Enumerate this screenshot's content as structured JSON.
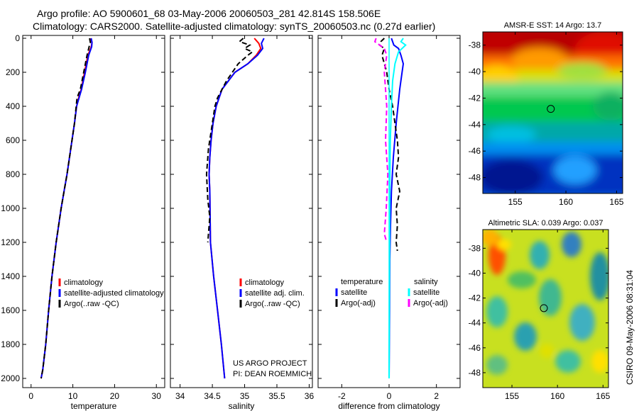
{
  "header": {
    "line1": "Argo profile: AO 5900601_68 03-May-2006 20060503_281 42.814S 158.506E",
    "line2": "Climatology: CARS2000. Satellite-adjusted climatology: synTS_20060503.nc (0.27d earlier)"
  },
  "colors": {
    "red": "#ff0000",
    "blue": "#0000ff",
    "black": "#000000",
    "cyan": "#00ffff",
    "magenta": "#ff00ff"
  },
  "chart_data": [
    {
      "id": "temperature",
      "type": "line",
      "xlabel": "temperature",
      "ylabel": "",
      "xlim": [
        -2,
        32
      ],
      "ylim": [
        2050,
        0
      ],
      "xticks": [
        0,
        10,
        20,
        30
      ],
      "yticks": [
        0,
        200,
        400,
        600,
        800,
        1000,
        1200,
        1400,
        1600,
        1800,
        2000
      ],
      "legend": [
        "climatology",
        "satellite-adjusted climatology",
        "Argo(..raw -QC)"
      ],
      "series": [
        {
          "name": "climatology",
          "color": "red",
          "dash": false,
          "x": [
            14.3,
            14.6,
            14.4,
            13.6,
            12.8,
            12.0,
            11.4,
            10.9,
            10.4,
            9.8,
            9.2,
            8.6,
            7.9,
            7.2,
            6.0,
            5.0,
            4.2,
            3.5,
            2.8,
            2.4
          ],
          "y": [
            0,
            25,
            50,
            100,
            200,
            300,
            350,
            400,
            500,
            600,
            700,
            800,
            900,
            1000,
            1200,
            1400,
            1600,
            1800,
            1950,
            2000
          ]
        },
        {
          "name": "satellite-adjusted climatology",
          "color": "blue",
          "dash": false,
          "x": [
            14.4,
            14.6,
            14.5,
            13.8,
            13.0,
            12.1,
            11.5,
            10.9,
            10.4,
            9.8,
            9.2,
            8.6,
            7.9,
            7.2,
            6.0,
            5.0,
            4.2,
            3.5,
            2.8,
            2.4
          ],
          "y": [
            0,
            25,
            50,
            100,
            200,
            300,
            350,
            400,
            500,
            600,
            700,
            800,
            900,
            1000,
            1200,
            1400,
            1600,
            1800,
            1950,
            2000
          ]
        },
        {
          "name": "Argo(..raw -QC)",
          "color": "black",
          "dash": true,
          "x": [
            14.0,
            14.2,
            13.9,
            13.4,
            12.6,
            11.8,
            11.0,
            10.8,
            10.4,
            9.8,
            9.2,
            8.6,
            7.9,
            7.2,
            6.0,
            5.0,
            4.2,
            3.5,
            2.8,
            2.4
          ],
          "y": [
            0,
            25,
            50,
            100,
            200,
            300,
            350,
            400,
            500,
            600,
            700,
            800,
            900,
            1000,
            1200,
            1400,
            1600,
            1800,
            1950,
            2000
          ]
        }
      ]
    },
    {
      "id": "salinity",
      "type": "line",
      "xlabel": "salinity",
      "ylabel": "",
      "xlim": [
        33.85,
        36.05
      ],
      "ylim": [
        2050,
        0
      ],
      "xticks": [
        34,
        34.5,
        35,
        35.5,
        36
      ],
      "yticks": [],
      "legend": [
        "climatology",
        "satellite adj. clim.",
        "Argo(..raw -QC)"
      ],
      "series": [
        {
          "name": "climatology",
          "color": "red",
          "dash": false,
          "x": [
            35.15,
            35.22,
            35.25,
            35.18,
            35.05,
            34.85,
            34.75,
            34.65,
            34.56,
            34.51,
            34.48,
            34.46,
            34.45,
            34.46,
            34.47,
            34.52,
            34.58,
            34.64,
            34.69
          ],
          "y": [
            0,
            30,
            60,
            100,
            150,
            200,
            250,
            300,
            400,
            500,
            600,
            700,
            800,
            900,
            1200,
            1400,
            1600,
            1800,
            2000
          ]
        },
        {
          "name": "satellite adj. clim.",
          "color": "blue",
          "dash": false,
          "x": [
            35.3,
            35.26,
            35.28,
            35.2,
            35.05,
            34.85,
            34.75,
            34.65,
            34.56,
            34.51,
            34.48,
            34.46,
            34.45,
            34.46,
            34.47,
            34.52,
            34.58,
            34.64,
            34.69
          ],
          "y": [
            0,
            30,
            60,
            100,
            150,
            200,
            250,
            300,
            400,
            500,
            600,
            700,
            800,
            900,
            1200,
            1400,
            1600,
            1800,
            2000
          ]
        },
        {
          "name": "Argo(..raw -QC)",
          "color": "black",
          "dash": true,
          "x": [
            34.98,
            34.92,
            35.08,
            35.0,
            35.12,
            35.05,
            34.9,
            34.72,
            34.58,
            34.54,
            34.5,
            34.44,
            34.41,
            34.43,
            34.46,
            34.44,
            34.43
          ],
          "y": [
            0,
            20,
            40,
            60,
            80,
            100,
            150,
            250,
            350,
            400,
            500,
            650,
            800,
            950,
            1050,
            1150,
            1200
          ]
        }
      ]
    },
    {
      "id": "difference",
      "type": "line",
      "xlabel": "difference from climatology",
      "ylabel": "",
      "xlim": [
        -3.0,
        3.0
      ],
      "ylim": [
        2050,
        0
      ],
      "xticks": [
        -2,
        0,
        2
      ],
      "yticks": [],
      "legend_title_left": "temperature",
      "legend_title_right": "salinity",
      "legend": [
        "satellite",
        "Argo(-adj)",
        "satellite",
        "Argo(-adj)"
      ],
      "series": [
        {
          "name": "satellite",
          "group": "temperature",
          "color": "blue",
          "dash": false,
          "x": [
            0.1,
            0.2,
            0.4,
            0.5,
            0.6,
            0.55,
            0.45,
            0.3,
            0.18,
            0.1,
            0.06,
            0.03,
            0.02,
            0.0
          ],
          "y": [
            0,
            40,
            60,
            100,
            150,
            200,
            300,
            500,
            700,
            900,
            1100,
            1300,
            1600,
            2000
          ]
        },
        {
          "name": "Argo(-adj)",
          "group": "temperature",
          "color": "black",
          "dash": true,
          "x": [
            -0.2,
            -0.35,
            -0.4,
            -0.2,
            -0.3,
            -0.1,
            0.0,
            0.15,
            0.25,
            0.35,
            0.4,
            0.3,
            0.45,
            0.3,
            0.35,
            0.3,
            0.35
          ],
          "y": [
            0,
            20,
            40,
            60,
            100,
            200,
            300,
            400,
            500,
            600,
            700,
            800,
            900,
            1000,
            1100,
            1200,
            1250
          ]
        },
        {
          "name": "satellite",
          "group": "salinity",
          "color": "cyan",
          "dash": false,
          "x": [
            0.6,
            0.5,
            0.7,
            0.4,
            0.25,
            0.15,
            0.1,
            0.05,
            0.03,
            0.02,
            0.01,
            0.0
          ],
          "y": [
            0,
            20,
            40,
            80,
            150,
            250,
            400,
            600,
            900,
            1200,
            1600,
            2000
          ]
        },
        {
          "name": "Argo(-adj)",
          "group": "salinity",
          "color": "magenta",
          "dash": true,
          "x": [
            -0.55,
            -0.6,
            -0.4,
            -0.2,
            -0.1,
            -0.2,
            -0.1,
            -0.15,
            -0.05,
            -0.12,
            -0.2,
            -0.1
          ],
          "y": [
            0,
            20,
            40,
            60,
            100,
            200,
            400,
            600,
            800,
            1000,
            1150,
            1200
          ]
        }
      ]
    },
    {
      "id": "sst-map",
      "type": "heatmap",
      "title": "AMSR-E SST: 14 Argo: 13.7",
      "xlim": [
        151.8,
        165.6
      ],
      "ylim": [
        -49.2,
        -37.0
      ],
      "xticks": [
        155,
        160,
        165
      ],
      "yticks": [
        -38,
        -40,
        -42,
        -44,
        -46,
        -48
      ],
      "marker": {
        "lon": 158.506,
        "lat": -42.814
      }
    },
    {
      "id": "sla-map",
      "type": "heatmap",
      "title": "Altimetric SLA: 0.039 Argo: 0.037",
      "xlim": [
        151.8,
        165.6
      ],
      "ylim": [
        -49.2,
        -36.5
      ],
      "xticks": [
        155,
        160,
        165
      ],
      "yticks": [
        -38,
        -40,
        -42,
        -44,
        -46,
        -48
      ],
      "marker": {
        "lon": 158.506,
        "lat": -42.814
      }
    }
  ],
  "texts": {
    "credit1": "US ARGO PROJECT",
    "credit2": "PI: DEAN ROEMMICH",
    "side_label": "CSIRO 09-May-2006 08:31:04"
  }
}
